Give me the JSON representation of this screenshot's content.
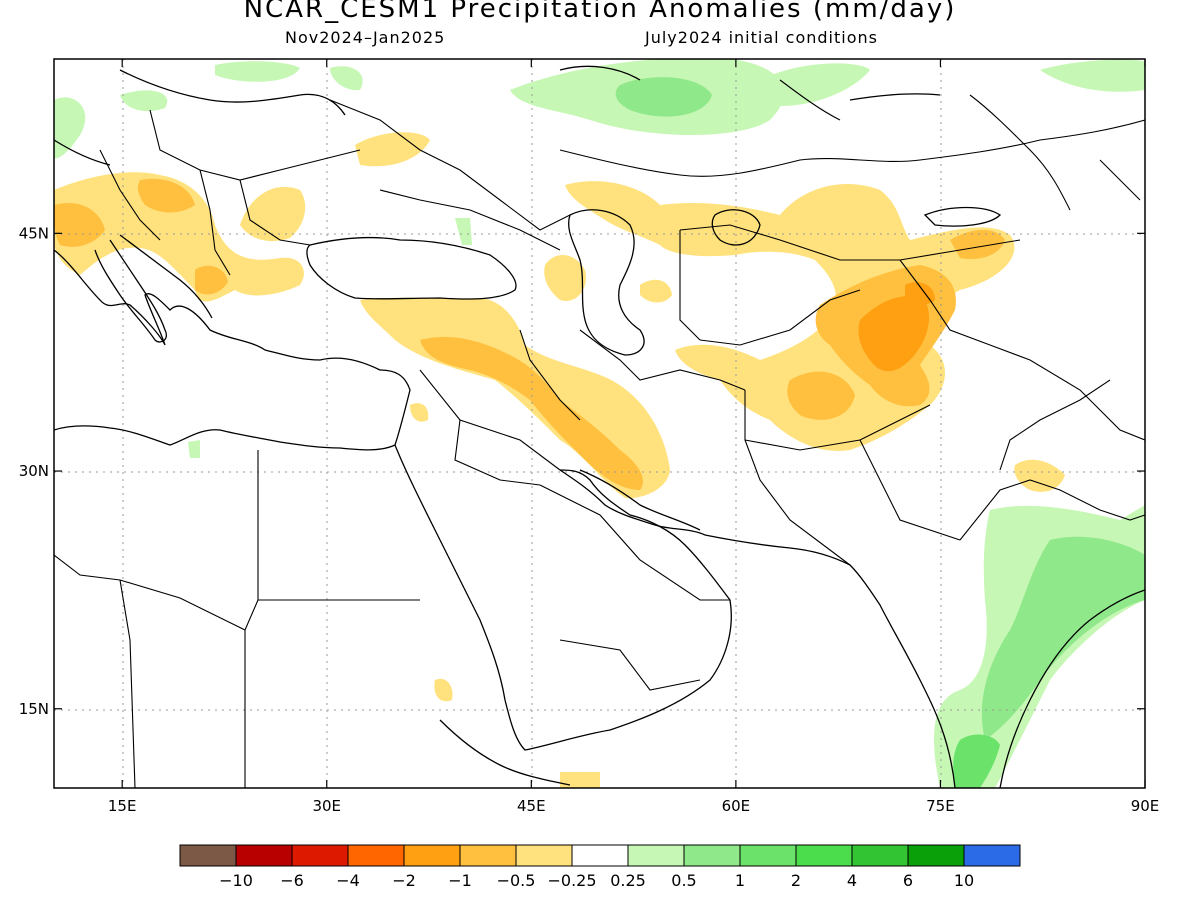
{
  "title": "NCAR_CESM1 Precipitation Anomalies (mm/day)",
  "subtitle_left": "Nov2024–Jan2025",
  "subtitle_right": "July2024 initial conditions",
  "map": {
    "lon_ticks": [
      "15E",
      "30E",
      "45E",
      "60E",
      "75E",
      "90E"
    ],
    "lat_ticks": [
      "45N",
      "30N",
      "15N"
    ],
    "lon_range": [
      10,
      90
    ],
    "lat_range": [
      10,
      56
    ],
    "gridlines": true
  },
  "legend": {
    "colors": [
      "#7b5946",
      "#b80000",
      "#dd1a00",
      "#ff6600",
      "#ff9f12",
      "#ffc040",
      "#ffe27d",
      "#ffffff",
      "#c6f7b4",
      "#8fe88a",
      "#6be36b",
      "#4cdd4c",
      "#33c433",
      "#0aa00a",
      "#2b6be8"
    ],
    "labels": [
      "−10",
      "−6",
      "−4",
      "−2",
      "−1",
      "−0.5",
      "−0.25",
      "0.25",
      "0.5",
      "1",
      "2",
      "4",
      "6",
      "10"
    ]
  },
  "anomaly_regions": [
    {
      "name": "central-asia-yellow",
      "color": "#ffe27d"
    },
    {
      "name": "afghanistan-pakistan-orange",
      "color": "#ffc040"
    },
    {
      "name": "tajikistan-dark-orange",
      "color": "#ff9f12"
    },
    {
      "name": "iraq-iran-orange",
      "color": "#ffc040"
    },
    {
      "name": "balkans-yellow",
      "color": "#ffe27d"
    },
    {
      "name": "india-green",
      "color": "#c6f7b4"
    },
    {
      "name": "india-east-coast-green",
      "color": "#8fe88a"
    },
    {
      "name": "russia-north-green",
      "color": "#8fe88a"
    }
  ]
}
